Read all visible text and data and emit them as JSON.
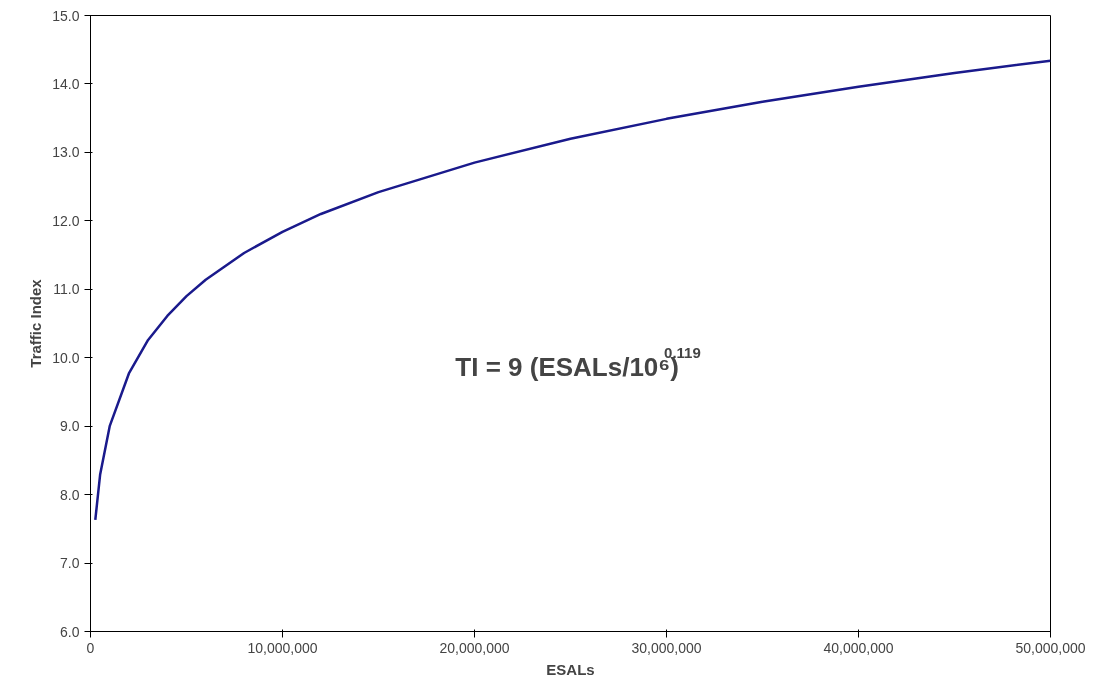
{
  "chart_data": {
    "type": "line",
    "xlabel": "ESALs",
    "ylabel": "Traffic Index",
    "x": [
      250000,
      500000,
      1000000,
      2000000,
      3000000,
      4000000,
      5000000,
      6000000,
      8000000,
      10000000,
      12000000,
      15000000,
      20000000,
      25000000,
      30000000,
      35000000,
      40000000,
      45000000,
      50000000
    ],
    "series": [
      {
        "color": "#1a1a8c",
        "values": [
          7.63,
          8.29,
          9.0,
          9.77,
          10.26,
          10.61,
          10.9,
          11.14,
          11.53,
          11.84,
          12.1,
          12.42,
          12.85,
          13.2,
          13.49,
          13.74,
          13.96,
          14.16,
          14.34
        ]
      }
    ],
    "xlim": [
      0,
      50000000
    ],
    "ylim": [
      6.0,
      15.0
    ],
    "xticks": [
      {
        "value": 0,
        "label": "0"
      },
      {
        "value": 10000000,
        "label": "10,000,000"
      },
      {
        "value": 20000000,
        "label": "20,000,000"
      },
      {
        "value": 30000000,
        "label": "30,000,000"
      },
      {
        "value": 40000000,
        "label": "40,000,000"
      },
      {
        "value": 50000000,
        "label": "50,000,000"
      }
    ],
    "yticks": [
      {
        "value": 6,
        "label": "6.0"
      },
      {
        "value": 7,
        "label": "7.0"
      },
      {
        "value": 8,
        "label": "8.0"
      },
      {
        "value": 9,
        "label": "9.0"
      },
      {
        "value": 10,
        "label": "10.0"
      },
      {
        "value": 11,
        "label": "11.0"
      },
      {
        "value": 12,
        "label": "12.0"
      },
      {
        "value": 13,
        "label": "13.0"
      },
      {
        "value": 14,
        "label": "14.0"
      },
      {
        "value": 15,
        "label": "15.0"
      }
    ],
    "annotations": [
      "TI = 9 (ESALs/10⁶)$^{0.119}$"
    ],
    "grid": false,
    "marker": "none",
    "line_style": "solid"
  }
}
